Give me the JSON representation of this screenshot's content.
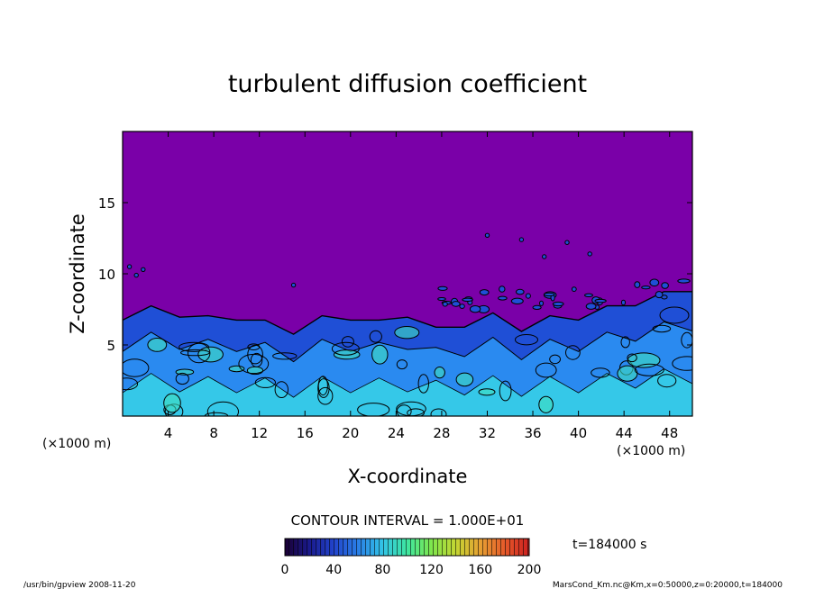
{
  "chart_data": {
    "type": "heatmap",
    "title": "turbulent diffusion coefficient",
    "xlabel": "X-coordinate",
    "ylabel": "Z-coordinate",
    "x_unit": "(×1000 m)",
    "y_unit": "(×1000 m)",
    "xlim": [
      0,
      50
    ],
    "ylim": [
      0,
      20
    ],
    "x_ticks": [
      4,
      8,
      12,
      16,
      20,
      24,
      28,
      32,
      36,
      40,
      44,
      48
    ],
    "y_ticks": [
      5,
      10,
      15
    ],
    "contour_interval_text": "CONTOUR INTERVAL = 1.000E+01",
    "time_text": "t=184000 s",
    "colorbar": {
      "min": 0,
      "max": 200,
      "ticks": [
        0,
        40,
        80,
        120,
        160,
        200
      ],
      "colors": [
        "#1a0033",
        "#1a1a8c",
        "#2244cc",
        "#2a7fe6",
        "#33c4e6",
        "#3ee6a0",
        "#7fe64d",
        "#c4d633",
        "#e6a033",
        "#e65a2a",
        "#cc2020"
      ]
    },
    "background_color": "#7a00a8",
    "boundary_layer_top_km": [
      7.0,
      7.5,
      7.2,
      6.8,
      7.0,
      6.5,
      6.0,
      6.8,
      7.0,
      6.5,
      7.2,
      6.0,
      6.5,
      7.0,
      6.2,
      6.8,
      7.0,
      7.5,
      8.0,
      8.5,
      9.0
    ]
  },
  "footer": {
    "left": "/usr/bin/gpview   2008-11-20",
    "right": "MarsCond_Km.nc@Km,x=0:50000,z=0:20000,t=184000"
  }
}
